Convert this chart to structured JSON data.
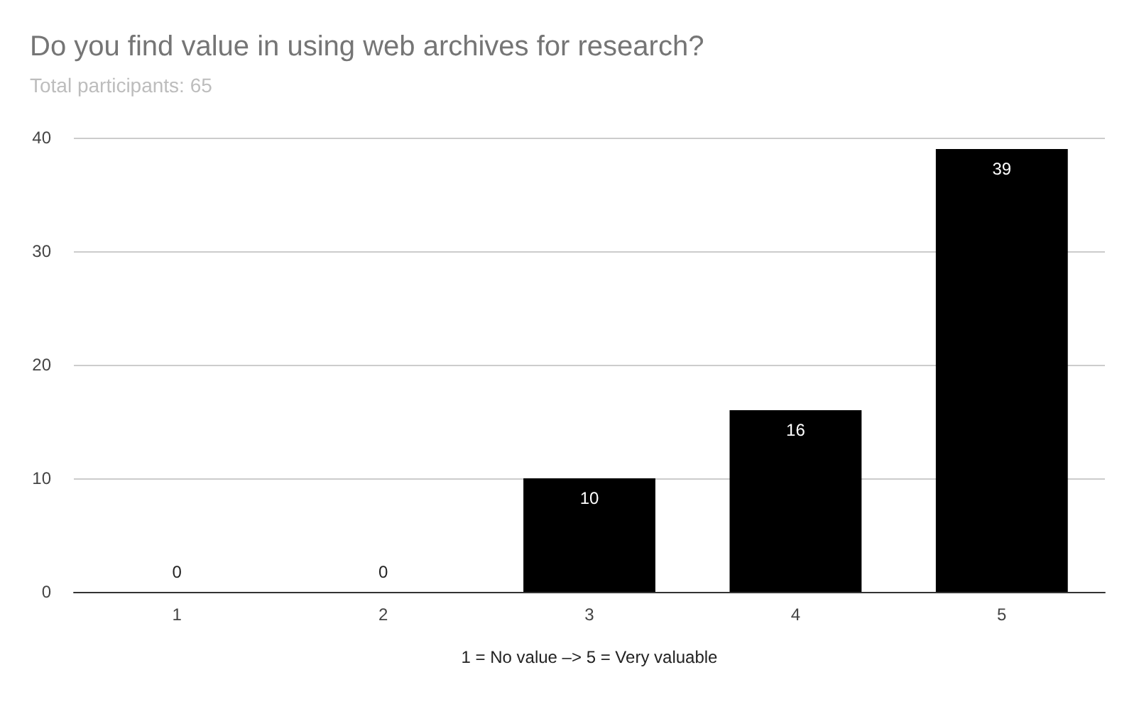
{
  "chart_data": {
    "type": "bar",
    "title": "Do you find value in using web archives for research?",
    "subtitle": "Total participants: 65",
    "xlabel": "1 = No value –> 5 = Very valuable",
    "categories": [
      "1",
      "2",
      "3",
      "4",
      "5"
    ],
    "values": [
      0,
      0,
      10,
      16,
      39
    ],
    "color": "#000000",
    "ylim": [
      0,
      40
    ],
    "yticks": [
      0,
      10,
      20,
      30,
      40
    ],
    "grid": "y",
    "data_labels": true
  }
}
